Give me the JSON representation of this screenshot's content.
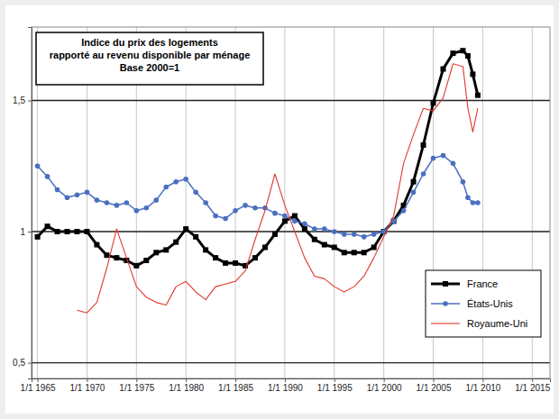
{
  "chart_data": {
    "type": "line",
    "title": "Indice du prix des logements\nrapporté au revenu disponible par ménage",
    "subtitle": "Base 2000=1",
    "x": [
      1965,
      1966,
      1967,
      1968,
      1969,
      1970,
      1971,
      1972,
      1973,
      1974,
      1975,
      1976,
      1977,
      1978,
      1979,
      1980,
      1981,
      1982,
      1983,
      1984,
      1985,
      1986,
      1987,
      1988,
      1989,
      1990,
      1991,
      1992,
      1993,
      1994,
      1995,
      1996,
      1997,
      1998,
      1999,
      2000,
      2001,
      2002,
      2003,
      2004,
      2005,
      2006,
      2007,
      2008,
      2008.5,
      2009,
      2009.5
    ],
    "series": [
      {
        "name": "France",
        "color": "#000000",
        "marker": "square",
        "line_style": "solid",
        "values": [
          0.98,
          1.02,
          1.0,
          1.0,
          1.0,
          1.0,
          0.95,
          0.91,
          0.9,
          0.89,
          0.87,
          0.89,
          0.92,
          0.93,
          0.96,
          1.01,
          0.98,
          0.93,
          0.9,
          0.88,
          0.88,
          0.87,
          0.9,
          0.94,
          0.99,
          1.04,
          1.06,
          1.01,
          0.97,
          0.95,
          0.94,
          0.92,
          0.92,
          0.92,
          0.94,
          1.0,
          1.04,
          1.1,
          1.19,
          1.33,
          1.49,
          1.62,
          1.68,
          1.69,
          1.67,
          1.6,
          1.52
        ]
      },
      {
        "name": "États-Unis",
        "color": "#4a6fc0",
        "marker": "circle",
        "line_style": "solid",
        "values": [
          1.25,
          1.21,
          1.16,
          1.13,
          1.14,
          1.15,
          1.12,
          1.11,
          1.1,
          1.11,
          1.08,
          1.09,
          1.12,
          1.17,
          1.19,
          1.2,
          1.15,
          1.11,
          1.06,
          1.05,
          1.08,
          1.1,
          1.09,
          1.09,
          1.07,
          1.06,
          1.04,
          1.03,
          1.01,
          1.01,
          1.0,
          0.99,
          0.99,
          0.98,
          0.99,
          1.0,
          1.04,
          1.08,
          1.15,
          1.22,
          1.28,
          1.29,
          1.26,
          1.19,
          1.13,
          1.11,
          1.11
        ]
      },
      {
        "name": "Royaume-Uni",
        "color": "#e0392b",
        "marker": "none",
        "line_style": "solid",
        "values": [
          null,
          null,
          null,
          null,
          0.7,
          0.69,
          0.73,
          0.86,
          1.01,
          0.9,
          0.79,
          0.75,
          0.73,
          0.72,
          0.79,
          0.81,
          0.77,
          0.74,
          0.79,
          0.8,
          0.81,
          0.85,
          0.97,
          1.08,
          1.22,
          1.1,
          1.0,
          0.9,
          0.83,
          0.82,
          0.79,
          0.77,
          0.79,
          0.83,
          0.9,
          0.98,
          1.06,
          1.26,
          1.37,
          1.47,
          1.46,
          1.51,
          1.64,
          1.63,
          1.47,
          1.38,
          1.47
        ]
      }
    ],
    "xlim": [
      1964.4,
      2016.8
    ],
    "xticks": [
      {
        "value": 1965,
        "label": "1/1 1965"
      },
      {
        "value": 1970,
        "label": "1/1 1970"
      },
      {
        "value": 1975,
        "label": "1/1 1975"
      },
      {
        "value": 1980,
        "label": "1/1 1980"
      },
      {
        "value": 1985,
        "label": "1/1 1985"
      },
      {
        "value": 1990,
        "label": "1/1 1990"
      },
      {
        "value": 1995,
        "label": "1/1 1995"
      },
      {
        "value": 2000,
        "label": "1/1 2000"
      },
      {
        "value": 2005,
        "label": "1/1 2005"
      },
      {
        "value": 2010,
        "label": "1/1 2010"
      },
      {
        "value": 2015,
        "label": "1/1 2015"
      }
    ],
    "ylim": [
      0.44,
      1.78
    ],
    "yticks": [
      {
        "value": 0.5,
        "label": "0,5"
      },
      1,
      {
        "value": 1.5,
        "label": "1,5"
      }
    ],
    "grid": true,
    "legend": "lower right"
  }
}
